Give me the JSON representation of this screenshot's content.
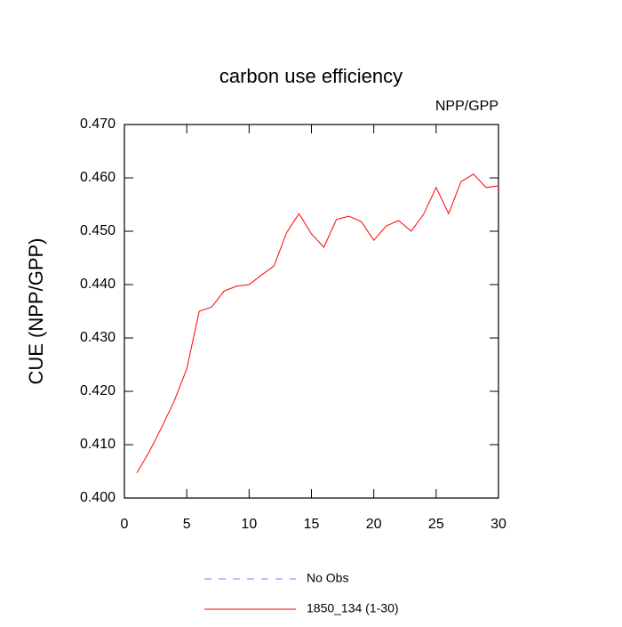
{
  "chart_data": {
    "type": "line",
    "title": "carbon use efficiency",
    "subtitle": "NPP/GPP",
    "ylabel": "CUE  (NPP/GPP)",
    "x": [
      1,
      2,
      3,
      4,
      5,
      6,
      7,
      8,
      9,
      10,
      11,
      12,
      13,
      14,
      15,
      16,
      17,
      18,
      19,
      20,
      21,
      22,
      23,
      24,
      25,
      26,
      27,
      28,
      29,
      30
    ],
    "series": [
      {
        "name": "1850_134 (1-30)",
        "color": "#ff0000",
        "values": [
          0.4047,
          0.4087,
          0.4133,
          0.4182,
          0.4242,
          0.435,
          0.4358,
          0.4388,
          0.4397,
          0.44,
          0.4418,
          0.4435,
          0.4497,
          0.4533,
          0.4495,
          0.447,
          0.4522,
          0.4528,
          0.4518,
          0.4483,
          0.451,
          0.452,
          0.45,
          0.4532,
          0.4582,
          0.4533,
          0.4593,
          0.4607,
          0.4582,
          0.4585
        ]
      }
    ],
    "legend_extra": [
      {
        "name": "No Obs",
        "color": "#8080ff",
        "dash": "8 8"
      }
    ],
    "xlim": [
      0,
      30
    ],
    "xticks": [
      0,
      5,
      10,
      15,
      20,
      25,
      30
    ],
    "ylim": [
      0.4,
      0.47
    ],
    "yticks": [
      {
        "value": 0.4,
        "label": "0.400"
      },
      {
        "value": 0.41,
        "label": "0.410"
      },
      {
        "value": 0.42,
        "label": "0.420"
      },
      {
        "value": 0.43,
        "label": "0.430"
      },
      {
        "value": 0.44,
        "label": "0.440"
      },
      {
        "value": 0.45,
        "label": "0.450"
      },
      {
        "value": 0.46,
        "label": "0.460"
      },
      {
        "value": 0.47,
        "label": "0.470"
      }
    ],
    "grid": false
  }
}
